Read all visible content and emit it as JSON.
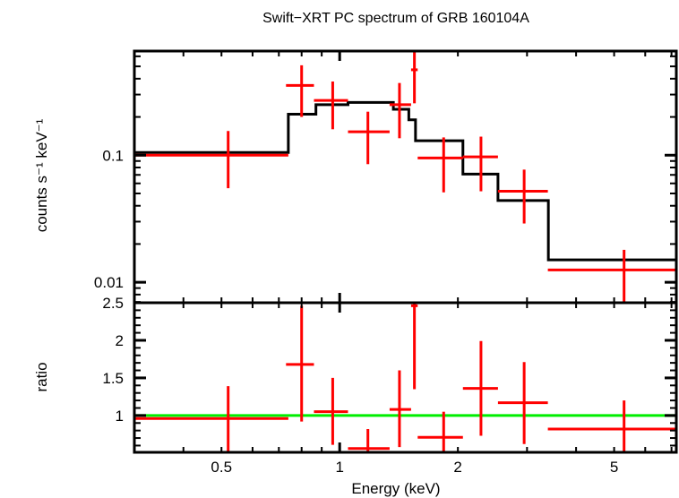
{
  "chart_data": [
    {
      "type": "scatter",
      "panel": "spectrum",
      "title": "Swift−XRT PC spectrum of GRB 160104A",
      "xlabel": "",
      "ylabel": "counts s⁻¹ keV⁻¹",
      "xscale": "log",
      "yscale": "log",
      "xlim": [
        0.3,
        7.2
      ],
      "ylim": [
        0.0069,
        0.66
      ],
      "yticks": [
        {
          "value": 0.1,
          "label": "0.1"
        },
        {
          "value": 0.01,
          "label": "0.01"
        }
      ],
      "grid": false,
      "series": [
        {
          "name": "data",
          "color": "#ff0000",
          "style": "errorbar-cross",
          "points": [
            {
              "x": 0.52,
              "xlo": 0.3,
              "xhi": 0.74,
              "y": 0.1,
              "ylo": 0.055,
              "yhi": 0.155
            },
            {
              "x": 0.8,
              "xlo": 0.73,
              "xhi": 0.86,
              "y": 0.354,
              "ylo": 0.2,
              "yhi": 0.51
            },
            {
              "x": 0.96,
              "xlo": 0.86,
              "xhi": 1.05,
              "y": 0.27,
              "ylo": 0.16,
              "yhi": 0.38
            },
            {
              "x": 1.18,
              "xlo": 1.05,
              "xhi": 1.34,
              "y": 0.153,
              "ylo": 0.085,
              "yhi": 0.22
            },
            {
              "x": 1.42,
              "xlo": 1.34,
              "xhi": 1.52,
              "y": 0.25,
              "ylo": 0.136,
              "yhi": 0.37
            },
            {
              "x": 1.55,
              "xlo": 1.52,
              "xhi": 1.58,
              "y": 0.47,
              "ylo": 0.256,
              "yhi": 0.68
            },
            {
              "x": 1.84,
              "xlo": 1.58,
              "xhi": 2.06,
              "y": 0.095,
              "ylo": 0.051,
              "yhi": 0.138
            },
            {
              "x": 2.29,
              "xlo": 2.06,
              "xhi": 2.53,
              "y": 0.097,
              "ylo": 0.052,
              "yhi": 0.14
            },
            {
              "x": 2.95,
              "xlo": 2.53,
              "xhi": 3.39,
              "y": 0.052,
              "ylo": 0.029,
              "yhi": 0.077
            },
            {
              "x": 5.3,
              "xlo": 3.39,
              "xhi": 7.2,
              "y": 0.0125,
              "ylo": 0.0069,
              "yhi": 0.018
            }
          ]
        },
        {
          "name": "model",
          "color": "#000000",
          "style": "step",
          "steps": [
            {
              "xlo": 0.3,
              "xhi": 0.74,
              "y": 0.105
            },
            {
              "xlo": 0.74,
              "xhi": 0.87,
              "y": 0.21
            },
            {
              "xlo": 0.87,
              "xhi": 1.05,
              "y": 0.25
            },
            {
              "xlo": 1.05,
              "xhi": 1.37,
              "y": 0.26
            },
            {
              "xlo": 1.37,
              "xhi": 1.5,
              "y": 0.23
            },
            {
              "xlo": 1.5,
              "xhi": 1.56,
              "y": 0.19
            },
            {
              "xlo": 1.56,
              "xhi": 2.06,
              "y": 0.13
            },
            {
              "xlo": 2.06,
              "xhi": 2.53,
              "y": 0.071
            },
            {
              "xlo": 2.53,
              "xhi": 3.4,
              "y": 0.044
            },
            {
              "xlo": 3.4,
              "xhi": 7.2,
              "y": 0.015
            }
          ]
        }
      ]
    },
    {
      "type": "scatter",
      "panel": "ratio",
      "xlabel": "Energy (keV)",
      "ylabel": "ratio",
      "xscale": "log",
      "yscale": "linear",
      "xlim": [
        0.3,
        7.2
      ],
      "ylim": [
        0.51,
        2.5
      ],
      "xticks": [
        {
          "value": 0.5,
          "label": "0.5"
        },
        {
          "value": 1,
          "label": "1"
        },
        {
          "value": 2,
          "label": "2"
        },
        {
          "value": 5,
          "label": "5"
        }
      ],
      "yticks": [
        {
          "value": 2.5,
          "label": "2.5"
        },
        {
          "value": 2,
          "label": "2"
        },
        {
          "value": 1.5,
          "label": "1.5"
        },
        {
          "value": 1,
          "label": "1"
        }
      ],
      "grid": false,
      "reference_line": {
        "y": 1,
        "color": "#00ee00"
      },
      "series": [
        {
          "name": "ratio",
          "color": "#ff0000",
          "style": "errorbar-cross",
          "points": [
            {
              "x": 0.52,
              "xlo": 0.3,
              "xhi": 0.74,
              "y": 0.96,
              "ylo": 0.51,
              "yhi": 1.39
            },
            {
              "x": 0.8,
              "xlo": 0.73,
              "xhi": 0.86,
              "y": 1.68,
              "ylo": 0.92,
              "yhi": 2.46
            },
            {
              "x": 0.96,
              "xlo": 0.86,
              "xhi": 1.05,
              "y": 1.05,
              "ylo": 0.61,
              "yhi": 1.5
            },
            {
              "x": 1.18,
              "xlo": 1.05,
              "xhi": 1.34,
              "y": 0.56,
              "ylo": 0.51,
              "yhi": 0.82
            },
            {
              "x": 1.42,
              "xlo": 1.34,
              "xhi": 1.52,
              "y": 1.08,
              "ylo": 0.58,
              "yhi": 1.6
            },
            {
              "x": 1.55,
              "xlo": 1.52,
              "xhi": 1.58,
              "y": 2.46,
              "ylo": 1.35,
              "yhi": 2.52
            },
            {
              "x": 1.84,
              "xlo": 1.58,
              "xhi": 2.06,
              "y": 0.71,
              "ylo": 0.51,
              "yhi": 1.05
            },
            {
              "x": 2.29,
              "xlo": 2.06,
              "xhi": 2.53,
              "y": 1.36,
              "ylo": 0.73,
              "yhi": 1.99
            },
            {
              "x": 2.95,
              "xlo": 2.53,
              "xhi": 3.39,
              "y": 1.17,
              "ylo": 0.62,
              "yhi": 1.71
            },
            {
              "x": 5.3,
              "xlo": 3.39,
              "xhi": 7.2,
              "y": 0.82,
              "ylo": 0.51,
              "yhi": 1.2
            }
          ]
        }
      ]
    }
  ]
}
